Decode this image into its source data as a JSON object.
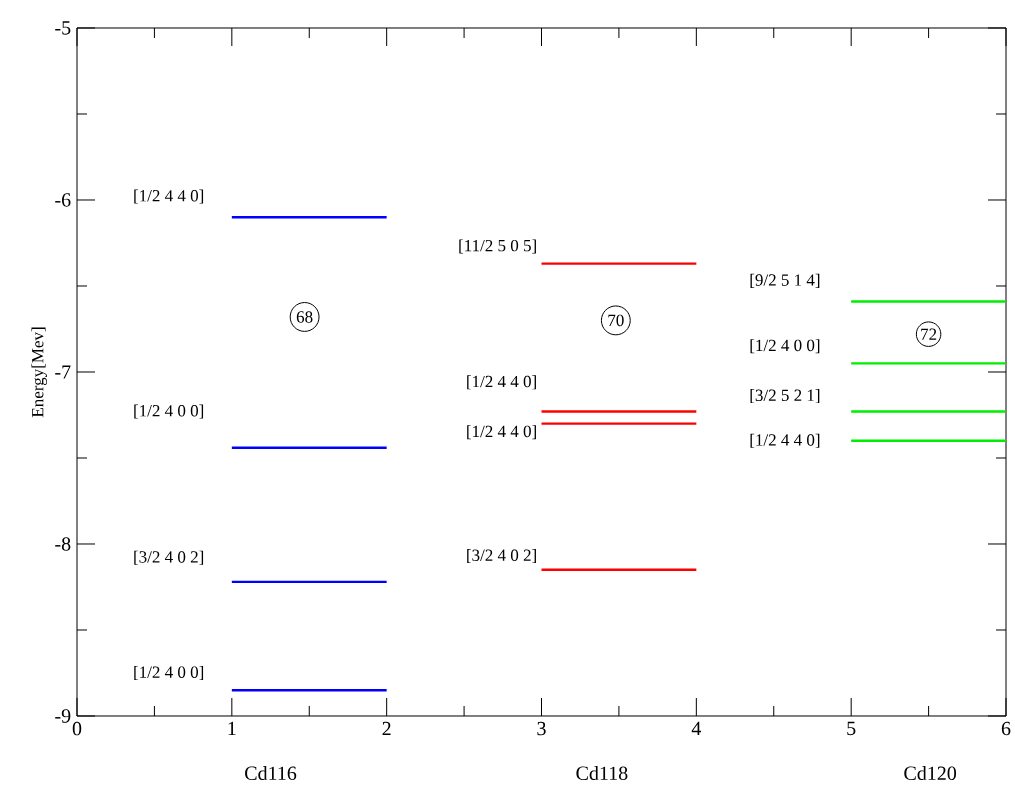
{
  "chart_data": {
    "type": "line",
    "ylabel": "Energy[Mev]",
    "xlim": [
      0,
      6
    ],
    "ylim": [
      -9,
      -5
    ],
    "xticks": [
      0,
      1,
      2,
      3,
      4,
      5,
      6
    ],
    "yticks": [
      -9,
      -8,
      -7,
      -6,
      -5
    ],
    "grid": false,
    "series": [
      {
        "color": "#0000ff",
        "x": [
          1,
          2
        ],
        "values": [
          -6.1,
          -6.1
        ]
      },
      {
        "color": "#0000ff",
        "x": [
          1,
          2
        ],
        "values": [
          -7.44,
          -7.44
        ]
      },
      {
        "color": "#0000ff",
        "x": [
          1,
          2
        ],
        "values": [
          -8.22,
          -8.22
        ]
      },
      {
        "color": "#0000ff",
        "x": [
          1,
          2
        ],
        "values": [
          -8.85,
          -8.85
        ]
      },
      {
        "color": "#ff0000",
        "x": [
          3,
          4
        ],
        "values": [
          -6.37,
          -6.37
        ]
      },
      {
        "color": "#ff0000",
        "x": [
          3,
          4
        ],
        "values": [
          -7.23,
          -7.23
        ]
      },
      {
        "color": "#ff0000",
        "x": [
          3,
          4
        ],
        "values": [
          -7.3,
          -7.3
        ]
      },
      {
        "color": "#ff0000",
        "x": [
          3,
          4
        ],
        "values": [
          -8.15,
          -8.15
        ]
      },
      {
        "color": "#00ee00",
        "x": [
          5,
          6
        ],
        "values": [
          -6.59,
          -6.59
        ]
      },
      {
        "color": "#00ee00",
        "x": [
          5,
          6
        ],
        "values": [
          -6.95,
          -6.95
        ]
      },
      {
        "color": "#00ee00",
        "x": [
          5,
          6
        ],
        "values": [
          -7.23,
          -7.23
        ]
      },
      {
        "color": "#00ee00",
        "x": [
          5,
          6
        ],
        "values": [
          -7.4,
          -7.4
        ]
      }
    ],
    "annotations": [
      {
        "text": "[1/2 4 4 0]",
        "x": 1,
        "y": -6.1
      },
      {
        "text": "[1/2 4 0 0]",
        "x": 1,
        "y": -7.44
      },
      {
        "text": "[3/2 4 0 2]",
        "x": 1,
        "y": -8.22
      },
      {
        "text": "[1/2 4 0 0]",
        "x": 1,
        "y": -8.85
      },
      {
        "text": "[11/2 5 0 5]",
        "x": 3,
        "y": -6.37
      },
      {
        "text": "[1/2 4 4 0]",
        "x": 3,
        "y": -7.23
      },
      {
        "text": "[1/2 4 4 0]",
        "x": 3,
        "y": -7.3
      },
      {
        "text": "[3/2 4 0 2]",
        "x": 3,
        "y": -8.15
      },
      {
        "text": "[9/2 5 1 4]",
        "x": 5,
        "y": -6.59
      },
      {
        "text": "[1/2 4 0 0]",
        "x": 5,
        "y": -6.95
      },
      {
        "text": "[3/2 5 2 1]",
        "x": 5,
        "y": -7.23
      },
      {
        "text": "[1/2 4 4 0]",
        "x": 5,
        "y": -7.4
      },
      "68",
      "70",
      "72",
      "Cd116",
      "Cd118",
      "Cd120"
    ]
  }
}
